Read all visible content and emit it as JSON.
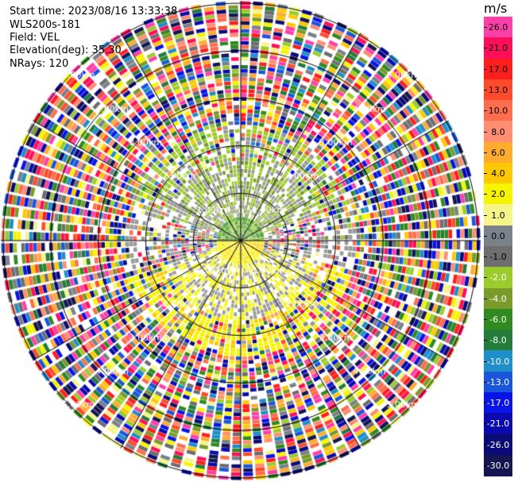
{
  "header": {
    "start_time": "Start time: 2023/08/16 13:33:38",
    "instrument": "WLS200s-181",
    "field": "Field: VEL",
    "elevation": "Elevation(deg): 35.30",
    "nrays": "NRays: 120"
  },
  "range_rings": [
    {
      "km": 1.0,
      "label_a": "1.00km",
      "label_b": "1.00km"
    },
    {
      "km": 2.0,
      "label_a": "2.00km",
      "label_b": "2.00km"
    },
    {
      "km": 3.0,
      "label_a": "3.00km",
      "label_b": "3.00km"
    },
    {
      "km": 4.0,
      "label_a": "4.00km",
      "label_b": "4.00km"
    },
    {
      "km": 5.0,
      "label_a": "5.00km",
      "label_b": "5.00km"
    }
  ],
  "colorbar": {
    "unit": "m/s",
    "levels": [
      {
        "label": "26.0",
        "color": "#ff3fa9"
      },
      {
        "label": "21.0",
        "color": "#ff0f5a"
      },
      {
        "label": "17.0",
        "color": "#ff1e1e"
      },
      {
        "label": "13.0",
        "color": "#ff4b2b"
      },
      {
        "label": "10.0",
        "color": "#ff6d4f"
      },
      {
        "label": "8.0",
        "color": "#ff8e72"
      },
      {
        "label": "6.0",
        "color": "#ffab2e"
      },
      {
        "label": "4.0",
        "color": "#ffc800"
      },
      {
        "label": "2.0",
        "color": "#f5f500"
      },
      {
        "label": "1.0",
        "color": "#f5f58a"
      },
      {
        "label": "0.0",
        "color": "#7a8189"
      },
      {
        "label": "-1.0",
        "color": "#6e6e6e"
      },
      {
        "label": "-2.0",
        "color": "#9ccc2c"
      },
      {
        "label": "-4.0",
        "color": "#7a9a2a"
      },
      {
        "label": "-6.0",
        "color": "#2f8a1f"
      },
      {
        "label": "-8.0",
        "color": "#237c3a"
      },
      {
        "label": "-10.0",
        "color": "#1f8fc9"
      },
      {
        "label": "-13.0",
        "color": "#1a56dc"
      },
      {
        "label": "-17.0",
        "color": "#0a14e6"
      },
      {
        "label": "-21.0",
        "color": "#0a0ab0"
      },
      {
        "label": "-26.0",
        "color": "#0a0a78"
      },
      {
        "label": "-30.0",
        "color": "#151552"
      }
    ]
  }
}
